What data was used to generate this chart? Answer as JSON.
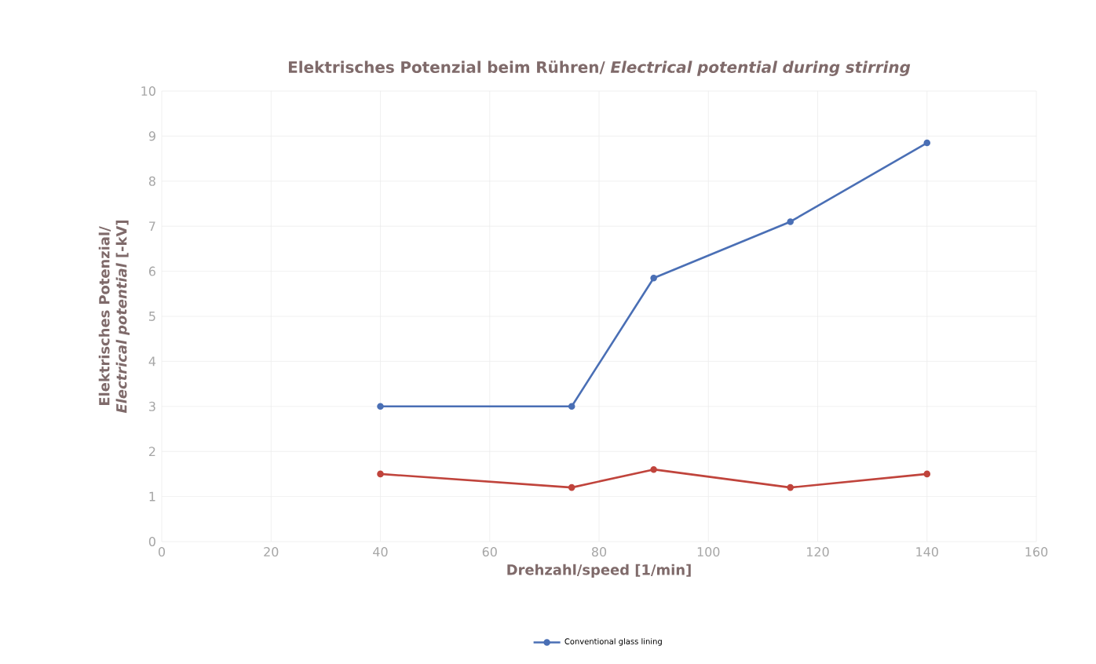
{
  "chart_data": {
    "type": "line",
    "title": "Elektrisches Potenzial beim Rühren/ *Electrical potential during stirring*",
    "xlabel": "Drehzahl/speed [1/min]",
    "ylabel": "Elektrisches Potenzial/ *Electrical potential* [-kV]",
    "x": [
      40,
      75,
      90,
      115,
      140
    ],
    "series": [
      {
        "name": "Conventional glass lining",
        "color": "#4a6fb5",
        "values": [
          3.0,
          3.0,
          5.85,
          7.1,
          8.85
        ]
      },
      {
        "color": "#c0443c",
        "values": [
          1.5,
          1.2,
          1.6,
          1.2,
          1.5
        ]
      }
    ],
    "xlim": [
      0,
      160
    ],
    "xticks": [
      0,
      20,
      40,
      60,
      80,
      100,
      120,
      140,
      160
    ],
    "ylim": [
      0,
      10
    ],
    "yticks": [
      0,
      1,
      2,
      3,
      4,
      5,
      6,
      7,
      8,
      9,
      10
    ],
    "grid": true,
    "legend": "bottom",
    "marker": "circle",
    "line_style": "solid"
  }
}
